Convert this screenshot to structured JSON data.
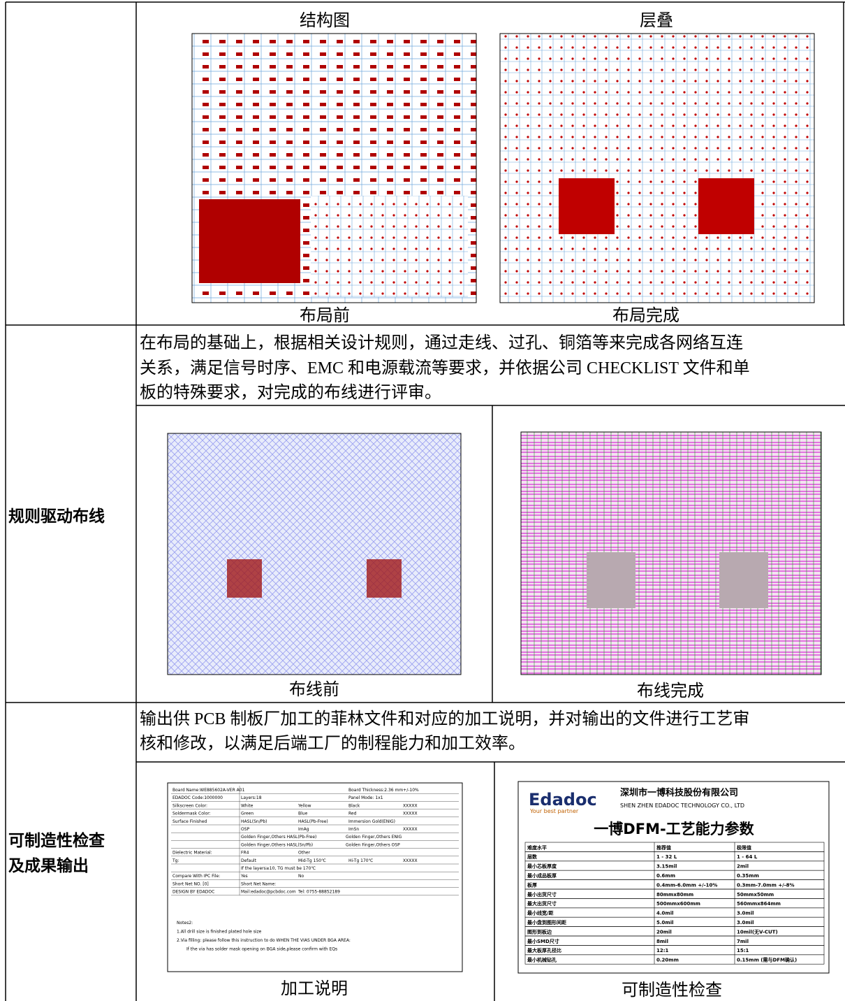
{
  "rows": [
    {
      "captions_top": [
        "结构图",
        "层叠"
      ],
      "captions_bottom": [
        "布局前",
        "布局完成"
      ]
    },
    {
      "label": "规则驱动布线",
      "text": [
        "在布局的基础上，根据相关设计规则，通过走线、过孔、铜箔等来完成各网络互连",
        "关系，满足信号时序、EMC 和电源载流等要求，并依据公司 CHECKLIST 文件和单",
        "板的特殊要求，对完成的布线进行评审。"
      ],
      "captions": [
        "布线前",
        "布线完成"
      ]
    },
    {
      "label": [
        "可制造性检查",
        "及成果输出"
      ],
      "text": [
        "输出供 PCB 制板厂加工的菲林文件和对应的加工说明，并对输出的文件进行工艺审",
        "核和修改，以满足后端工厂的制程能力和加工效率。"
      ],
      "captions": [
        "加工说明",
        "可制造性检查"
      ]
    }
  ],
  "process_sheet": {
    "rows": [
      {
        "label": "Board Name:WE885602A-VER A01",
        "cells": [
          "Board Thickness:2.36 mm+/-10%"
        ]
      },
      {
        "label": "EDADOC Code:1000000",
        "cells": [
          "Layers:18",
          "Panel Mode: 1x1"
        ]
      },
      {
        "label": "Silkscreen Color:",
        "cells": [
          "White",
          "Yellow",
          "Black",
          "XXXXX"
        ]
      },
      {
        "label": "Soldermask Color:",
        "cells": [
          "Green",
          "Blue",
          "Red",
          "XXXXX"
        ]
      },
      {
        "label": "Surface Finished",
        "cells": [
          "HASL(Sn/Pb)",
          "HASL(Pb-Free)",
          "Immersion Gold(ENIG)"
        ]
      },
      {
        "cells": [
          "OSP",
          "ImAg",
          "ImSn",
          "XXXXX"
        ]
      },
      {
        "cells": [
          "Golden Finger,Others HASL(Pb-Free)",
          "Golden Finger,Others ENIG"
        ]
      },
      {
        "cells": [
          "Golden Finger,Others HASL(Sn/Pb)",
          "Golden Finger,Others OSP"
        ]
      },
      {
        "label": "Dielectric Material:",
        "cells": [
          "FR4",
          "Other"
        ]
      },
      {
        "label": "Tg:",
        "cells": [
          "Default",
          "Mid-Tg 150℃",
          "Hi-Tg 170℃",
          "XXXXX"
        ]
      },
      {
        "cells": [
          "If the layers≥10, TG must be 170℃"
        ]
      },
      {
        "label": "Compare With IPC File:",
        "cells": [
          "Yes",
          "No"
        ]
      },
      {
        "label": "Short Net NO. [0]",
        "cells": [
          "Short Net Name:"
        ]
      },
      {
        "label": "DESIGN BY EDADOC",
        "cells": [
          "Mail:edadoc@pcbdoc.com",
          "Tel: 0755-88852189"
        ]
      }
    ],
    "notes": [
      "Notes2:",
      "1.All drill size is finished plated hole size",
      "2.Via filling: please follow this instruction to do WHEN THE VIAS UNDER BGA AREA:",
      "If the via has solder mask opening on BGA side,please confirm with EQs"
    ]
  },
  "dfm": {
    "logo": "Edadoc",
    "slogan": "Your best partner",
    "company": "深圳市一博科技股份有限公司",
    "company_en": "SHEN ZHEN EDADOC TECHNOLOGY CO., LTD",
    "title": "一博DFM-工艺能力参数",
    "rows": [
      [
        "难度水平",
        "推荐值",
        "极限值"
      ],
      [
        "层数",
        "1 - 32 L",
        "1 - 64 L"
      ],
      [
        "最小芯板厚度",
        "3.15mil",
        "2mil"
      ],
      [
        "最小成品板厚",
        "0.6mm",
        "0.35mm"
      ],
      [
        "板厚",
        "0.4mm-6.0mm +/-10%",
        "0.3mm-7.0mm +/-8%"
      ],
      [
        "最小出货尺寸",
        "80mmx80mm",
        "50mmx50mm"
      ],
      [
        "最大出货尺寸",
        "500mmx600mm",
        "560mmx864mm"
      ],
      [
        "最小线宽/距",
        "4.0mil",
        "3.0mil"
      ],
      [
        "最小盘到图形间距",
        "5.0mil",
        "3.0mil"
      ],
      [
        "图形到板边",
        "20mil",
        "10mil(无V-CUT)"
      ],
      [
        "最小SMD尺寸",
        "8mil",
        "7mil"
      ],
      [
        "最大板厚孔径比",
        "12:1",
        "15:1"
      ],
      [
        "最小机械钻孔",
        "0.20mm",
        "0.15mm (需与DFM确认)"
      ]
    ]
  }
}
